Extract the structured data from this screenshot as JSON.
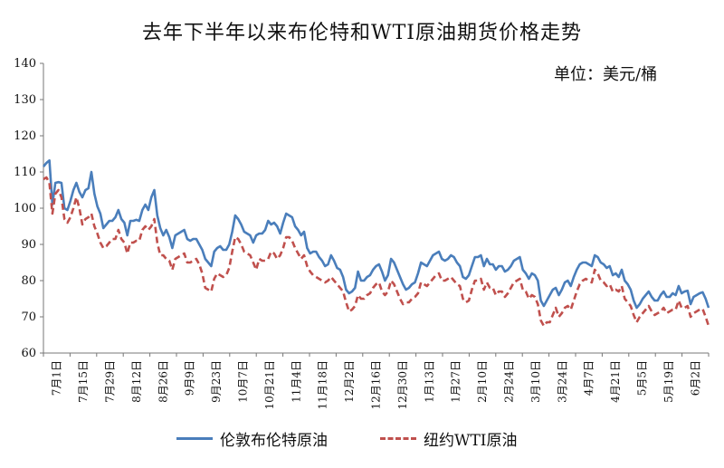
{
  "title": "去年下半年以来布伦特和WTI原油期货价格走势",
  "unit_label": "单位：美元/桶",
  "chart_data": {
    "type": "line",
    "title": "去年下半年以来布伦特和WTI原油期货价格走势",
    "ylabel": "单位：美元/桶",
    "ylim": [
      60,
      140
    ],
    "yticks": [
      60,
      70,
      80,
      90,
      100,
      110,
      120,
      130,
      140
    ],
    "xlabels": [
      "7月1日",
      "7月15日",
      "7月29日",
      "8月12日",
      "8月26日",
      "9月9日",
      "9月23日",
      "10月7日",
      "10月21日",
      "11月4日",
      "11月18日",
      "12月2日",
      "12月16日",
      "12月30日",
      "1月13日",
      "1月27日",
      "2月10日",
      "2月24日",
      "3月10日",
      "3月24日",
      "4月7日",
      "4月21日",
      "5月5日",
      "5月19日",
      "6月2日"
    ],
    "grid": false,
    "legend_position": "bottom",
    "series": [
      {
        "name": "伦敦布伦特原油",
        "color": "#4a7ebb",
        "dash": "solid",
        "values": [
          111.5,
          112.5,
          113.2,
          101,
          107,
          107.2,
          107,
          100,
          99.5,
          102,
          105,
          107,
          104.5,
          103,
          105,
          105.5,
          110,
          104,
          100.5,
          98.5,
          94.5,
          95.5,
          96.5,
          96.5,
          97.5,
          99.5,
          97,
          96,
          92.5,
          96.5,
          96.5,
          96.8,
          96.5,
          99.5,
          101,
          99.5,
          103,
          105,
          98,
          94.5,
          92.5,
          94,
          92,
          89,
          92.5,
          93,
          93.5,
          94,
          91.5,
          91,
          91.5,
          91.5,
          90,
          88.5,
          86,
          85,
          84,
          88,
          89,
          89.5,
          88.5,
          88.5,
          90,
          93.5,
          98,
          97,
          95.5,
          93.5,
          93,
          92.5,
          90.5,
          92.5,
          93,
          93,
          94,
          96.5,
          95.5,
          96,
          95,
          93,
          96,
          98.5,
          98,
          97.5,
          95,
          94,
          92.5,
          93.5,
          89,
          87.5,
          88,
          88,
          86.5,
          85.5,
          84,
          84.5,
          87,
          85.5,
          83.5,
          83,
          81,
          77.5,
          76.5,
          77,
          78,
          82.5,
          80,
          80,
          81,
          81.5,
          83,
          84,
          84.5,
          82.5,
          80,
          81.5,
          86,
          85,
          83,
          81,
          79,
          77.5,
          78,
          79,
          79.5,
          82,
          85,
          84.5,
          84,
          85.5,
          87,
          87.5,
          88,
          86,
          85.5,
          86,
          87,
          86.5,
          85,
          84,
          81,
          80.5,
          81.5,
          84,
          86.5,
          86.5,
          87,
          84,
          86,
          84.5,
          84.5,
          83,
          84,
          84,
          82.5,
          83,
          84,
          85.5,
          86,
          86.5,
          83,
          82,
          80.5,
          82,
          81.5,
          80,
          74.5,
          73,
          74.5,
          76,
          77.5,
          78,
          76,
          77.5,
          79.5,
          80,
          78.5,
          81,
          83,
          84.5,
          85,
          85,
          84.5,
          84,
          87,
          86.5,
          85,
          84.5,
          83.5,
          84,
          81.5,
          82,
          81,
          83,
          80,
          79,
          77.5,
          74.5,
          72.5,
          73.5,
          75,
          76,
          77,
          75.5,
          74.5,
          74.5,
          76,
          77,
          75.5,
          75.5,
          76.5,
          76,
          78.5,
          76.5,
          77,
          77.2,
          73.5,
          75.5,
          76,
          76.5,
          76.8,
          75,
          72.5
        ]
      },
      {
        "name": "纽约WTI原油",
        "color": "#c0504d",
        "dash": "dashed",
        "values": [
          108,
          108.5,
          107,
          98.5,
          104,
          105,
          103,
          97,
          96,
          97.5,
          100,
          103,
          100,
          95.5,
          97,
          97.5,
          98.5,
          95,
          93,
          90.5,
          89,
          89.5,
          90.5,
          91.5,
          91.5,
          94,
          91.5,
          90.5,
          87.5,
          90.5,
          90.5,
          91,
          91,
          94,
          95,
          94,
          95,
          97,
          90.5,
          87,
          87,
          86,
          85.5,
          83,
          86,
          86.5,
          87,
          87.5,
          85,
          85,
          85.5,
          86,
          84.5,
          82,
          78,
          77.5,
          77,
          80.5,
          82,
          81.5,
          81,
          81.5,
          83.5,
          88,
          92,
          91.5,
          90,
          88,
          87.5,
          87,
          85,
          83,
          86,
          85.5,
          85.5,
          86,
          88,
          87.5,
          86,
          87,
          89,
          92,
          92,
          91,
          89,
          87.5,
          86,
          87,
          84,
          82.5,
          81.5,
          81,
          80.5,
          80,
          79.5,
          80,
          81,
          80,
          79,
          78,
          77,
          74,
          71.5,
          72,
          73,
          76,
          75,
          75,
          76,
          76.5,
          78,
          79,
          79.5,
          77,
          76,
          77,
          80,
          79,
          77,
          75,
          73.5,
          74,
          74,
          75,
          75.5,
          76.5,
          79.5,
          79,
          78.5,
          79.5,
          80.5,
          81.5,
          82,
          80,
          80,
          80.5,
          81,
          80,
          79,
          78.5,
          75,
          74,
          74.5,
          77.5,
          80,
          80,
          80.5,
          77.5,
          79.5,
          78,
          78,
          76,
          77,
          77,
          75.5,
          76.5,
          78,
          79.5,
          80,
          80.5,
          77.5,
          77,
          75,
          76,
          75.5,
          73.5,
          69,
          67.5,
          68.5,
          68.5,
          70.5,
          72.5,
          70,
          71,
          72.5,
          73,
          72,
          74.5,
          77,
          79,
          80,
          80.5,
          80,
          79.5,
          83,
          82,
          80,
          79.5,
          78.5,
          79,
          77,
          77.5,
          77,
          78.5,
          75,
          74,
          73,
          70.5,
          68.5,
          70,
          71,
          72,
          73,
          71.5,
          70.5,
          71,
          71.5,
          72.5,
          71,
          71.5,
          72,
          72,
          74.5,
          72.5,
          72.5,
          73,
          70,
          71,
          71.5,
          72,
          72.2,
          70,
          67.5
        ]
      }
    ]
  }
}
